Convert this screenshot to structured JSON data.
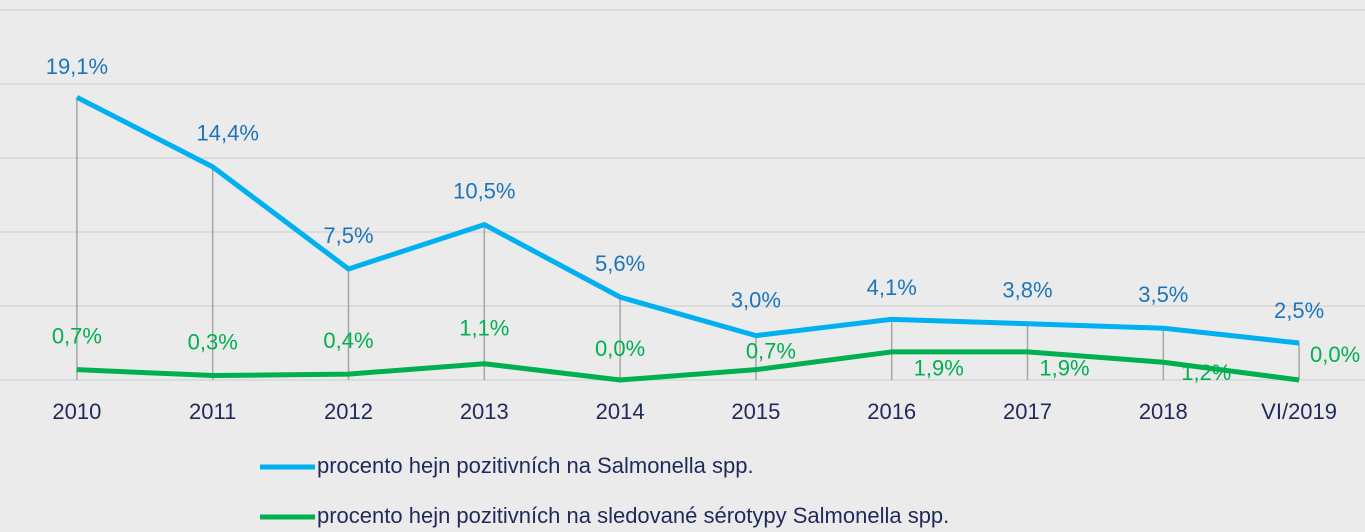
{
  "chart_data": {
    "type": "line",
    "categories": [
      "2010",
      "2011",
      "2012",
      "2013",
      "2014",
      "2015",
      "2016",
      "2017",
      "2018",
      "VI/2019"
    ],
    "series": [
      {
        "name": "procento hejn pozitivních na Salmonella spp.",
        "color": "#00b0f0",
        "values": [
          19.1,
          14.4,
          7.5,
          10.5,
          5.6,
          3.0,
          4.1,
          3.8,
          3.5,
          2.5
        ],
        "value_labels": [
          "19,1%",
          "14,4%",
          "7,5%",
          "10,5%",
          "5,6%",
          "3,0%",
          "4,1%",
          "3,8%",
          "3,5%",
          "2,5%"
        ]
      },
      {
        "name": "procento hejn pozitivních na sledované sérotypy Salmonella spp.",
        "color": "#00b050",
        "values": [
          0.7,
          0.3,
          0.4,
          1.1,
          0.0,
          0.7,
          1.9,
          1.9,
          1.2,
          0.0
        ],
        "value_labels": [
          "0,7%",
          "0,3%",
          "0,4%",
          "1,1%",
          "0,0%",
          "0,7%",
          "1,9%",
          "1,9%",
          "1,2%",
          "0,0%"
        ]
      }
    ],
    "ylim": [
      0,
      25
    ],
    "yticks": [
      0,
      5,
      10,
      15,
      20,
      25
    ],
    "grid": true
  }
}
